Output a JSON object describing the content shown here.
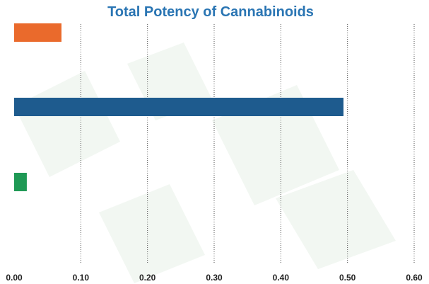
{
  "colors": {
    "title": "#2a75b3",
    "grid": "#555555",
    "watermark": "#e9f1ea"
  },
  "chart_data": {
    "type": "bar",
    "orientation": "horizontal",
    "title": "Total Potency of Cannabinoids",
    "xlabel": "",
    "ylabel": "",
    "xlim": [
      0,
      0.6
    ],
    "x_ticks": [
      "0.00",
      "0.10",
      "0.20",
      "0.30",
      "0.40",
      "0.50",
      "0.60"
    ],
    "categories": [
      "",
      "",
      ""
    ],
    "values": [
      0.071,
      0.494,
      0.019
    ],
    "bar_colors": [
      "#ea6a2c",
      "#1e5b8e",
      "#1f9955"
    ],
    "grid": true,
    "legend": "none"
  }
}
